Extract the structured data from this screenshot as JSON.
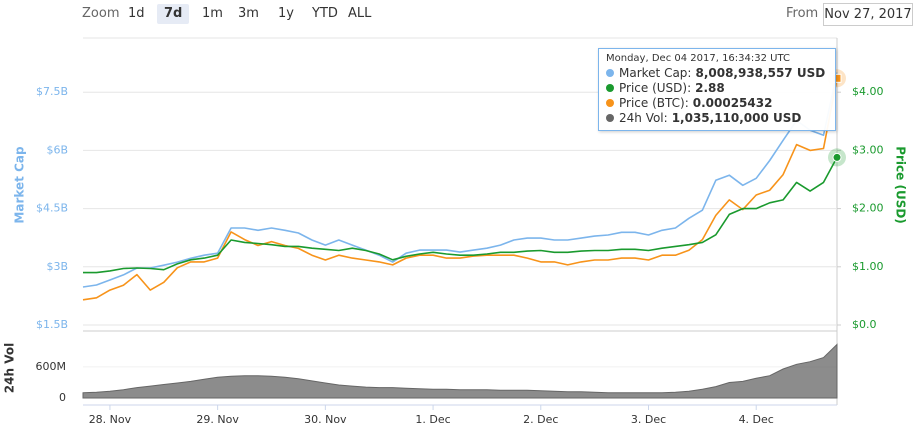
{
  "controls": {
    "zoom_label": "Zoom",
    "zoom_buttons": [
      "1d",
      "7d",
      "1m",
      "3m",
      "1y",
      "YTD",
      "ALL"
    ],
    "zoom_active": "7d",
    "from_label": "From",
    "from_date": "Nov 27, 2017"
  },
  "tooltip": {
    "title": "Monday, Dec 04 2017, 16:34:32 UTC",
    "rows": [
      {
        "label": "Market Cap:",
        "value": "8,008,938,557 USD"
      },
      {
        "label": "Price (USD):",
        "value": "2.88"
      },
      {
        "label": "Price (BTC):",
        "value": "0.00025432"
      },
      {
        "label": "24h Vol:",
        "value": "1,035,110,000 USD"
      }
    ]
  },
  "chart_data": {
    "type": "line",
    "y_label": "Market Cap",
    "y2_label": "Price (USD)",
    "vol_label": "24h Vol",
    "categories": [
      null,
      null,
      "28. Nov",
      null,
      null,
      null,
      null,
      null,
      null,
      null,
      "29. Nov",
      null,
      null,
      null,
      null,
      null,
      null,
      null,
      "30. Nov",
      null,
      null,
      null,
      null,
      null,
      null,
      null,
      "1. Dec",
      null,
      null,
      null,
      null,
      null,
      null,
      null,
      "2. Dec",
      null,
      null,
      null,
      null,
      null,
      null,
      null,
      "3. Dec",
      null,
      null,
      null,
      null,
      null,
      null,
      null,
      "4. Dec",
      null,
      null,
      null,
      null,
      null,
      null
    ],
    "ylim": [
      1500000000,
      9000000000
    ],
    "yticks": [
      {
        "value": 1500000000,
        "label": "$1.5B"
      },
      {
        "value": 3000000000,
        "label": "$3B"
      },
      {
        "value": 4500000000,
        "label": "$4.5B"
      },
      {
        "value": 6000000000,
        "label": "$6B"
      },
      {
        "value": 7500000000,
        "label": "$7.5B"
      }
    ],
    "y2lim": [
      0,
      5
    ],
    "y2ticks": [
      {
        "value": 0,
        "label": "$0.0"
      },
      {
        "value": 1,
        "label": "$1.00"
      },
      {
        "value": 2,
        "label": "$2.00"
      },
      {
        "value": 3,
        "label": "$3.00"
      },
      {
        "value": 4,
        "label": "$4.00"
      }
    ],
    "y3lim": [
      0,
      0.0003
    ],
    "vol_ylim": [
      0,
      1100000000
    ],
    "vol_yticks": [
      0,
      {
        "value": 600000000,
        "label": "600M"
      }
    ],
    "grid": true,
    "series": [
      {
        "name": "Market Cap",
        "color": "#7cb5ec",
        "axis": "y",
        "values": [
          2480000000,
          2530000000,
          2660000000,
          2790000000,
          2970000000,
          2970000000,
          3040000000,
          3120000000,
          3220000000,
          3300000000,
          3350000000,
          4000000000,
          4000000000,
          3940000000,
          4000000000,
          3940000000,
          3870000000,
          3690000000,
          3560000000,
          3690000000,
          3560000000,
          3430000000,
          3300000000,
          3120000000,
          3350000000,
          3430000000,
          3430000000,
          3430000000,
          3380000000,
          3430000000,
          3480000000,
          3560000000,
          3690000000,
          3740000000,
          3740000000,
          3690000000,
          3690000000,
          3740000000,
          3790000000,
          3820000000,
          3890000000,
          3890000000,
          3820000000,
          3940000000,
          4000000000,
          4250000000,
          4460000000,
          5230000000,
          5360000000,
          5100000000,
          5280000000,
          5740000000,
          6260000000,
          6770000000,
          6520000000,
          6390000000,
          8008938557
        ]
      },
      {
        "name": "Price (USD)",
        "color": "#1a9a2e",
        "axis": "y2",
        "values": [
          0.9,
          0.9,
          0.93,
          0.97,
          0.98,
          0.97,
          0.95,
          1.05,
          1.12,
          1.15,
          1.2,
          1.46,
          1.42,
          1.4,
          1.38,
          1.35,
          1.35,
          1.32,
          1.3,
          1.28,
          1.32,
          1.28,
          1.22,
          1.12,
          1.18,
          1.22,
          1.25,
          1.22,
          1.2,
          1.2,
          1.22,
          1.25,
          1.25,
          1.27,
          1.28,
          1.25,
          1.25,
          1.27,
          1.28,
          1.28,
          1.3,
          1.3,
          1.28,
          1.32,
          1.35,
          1.38,
          1.42,
          1.55,
          1.9,
          2.0,
          2.0,
          2.1,
          2.15,
          2.45,
          2.3,
          2.45,
          2.88
        ]
      },
      {
        "name": "Price (BTC)",
        "color": "#f7931a",
        "axis": "y3",
        "values": [
          2.6e-05,
          2.8e-05,
          3.6e-05,
          4.1e-05,
          5.2e-05,
          3.6e-05,
          4.4e-05,
          5.9e-05,
          6.5e-05,
          6.5e-05,
          6.9e-05,
          9.6e-05,
          8.8e-05,
          8.2e-05,
          8.6e-05,
          8.2e-05,
          7.9e-05,
          7.2e-05,
          6.7e-05,
          7.2e-05,
          6.9e-05,
          6.7e-05,
          6.5e-05,
          6.2e-05,
          6.9e-05,
          7.2e-05,
          7.2e-05,
          6.9e-05,
          6.9e-05,
          7.1e-05,
          7.2e-05,
          7.2e-05,
          7.2e-05,
          6.9e-05,
          6.5e-05,
          6.5e-05,
          6.2e-05,
          6.5e-05,
          6.7e-05,
          6.7e-05,
          6.9e-05,
          6.9e-05,
          6.7e-05,
          7.2e-05,
          7.2e-05,
          7.7e-05,
          8.8e-05,
          0.000113,
          0.000129,
          0.000119,
          0.000134,
          0.000139,
          0.000155,
          0.000186,
          0.00018,
          0.000182,
          0.00025432
        ]
      },
      {
        "name": "24h Vol",
        "color": "#666666",
        "axis": "vol",
        "type": "area",
        "values": [
          100000000,
          110000000,
          130000000,
          160000000,
          200000000,
          230000000,
          260000000,
          290000000,
          320000000,
          360000000,
          400000000,
          420000000,
          430000000,
          430000000,
          420000000,
          400000000,
          370000000,
          330000000,
          290000000,
          250000000,
          230000000,
          210000000,
          200000000,
          200000000,
          190000000,
          180000000,
          170000000,
          170000000,
          160000000,
          160000000,
          160000000,
          150000000,
          150000000,
          150000000,
          140000000,
          130000000,
          120000000,
          120000000,
          110000000,
          100000000,
          100000000,
          100000000,
          100000000,
          100000000,
          110000000,
          130000000,
          170000000,
          220000000,
          300000000,
          320000000,
          380000000,
          430000000,
          560000000,
          650000000,
          700000000,
          780000000,
          1035110000
        ]
      }
    ]
  }
}
